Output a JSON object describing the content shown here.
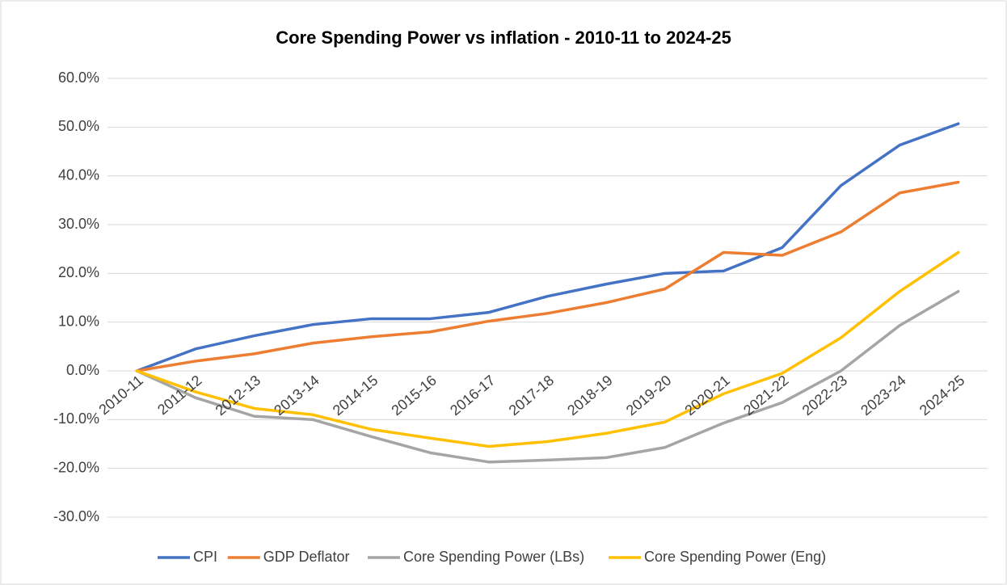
{
  "chart_data": {
    "type": "line",
    "title": "Core Spending Power vs inflation - 2010-11 to 2024-25",
    "categories": [
      "2010-11",
      "2011-12",
      "2012-13",
      "2013-14",
      "2014-15",
      "2015-16",
      "2016-17",
      "2017-18",
      "2018-19",
      "2019-20",
      "2020-21",
      "2021-22",
      "2022-23",
      "2023-24",
      "2024-25"
    ],
    "series": [
      {
        "name": "CPI",
        "color": "#4472c4",
        "values": [
          0,
          4.5,
          7.2,
          9.5,
          10.7,
          10.7,
          12,
          15.3,
          17.8,
          20,
          20.5,
          25.3,
          38,
          46.3,
          50.7
        ]
      },
      {
        "name": "GDP Deflator",
        "color": "#ed7d31",
        "values": [
          0,
          2,
          3.5,
          5.7,
          7,
          8,
          10.2,
          11.8,
          14,
          16.8,
          24.3,
          23.7,
          28.5,
          36.5,
          38.7
        ]
      },
      {
        "name": "Core Spending Power (LBs)",
        "color": "#a5a5a5",
        "values": [
          0,
          -5.5,
          -9.3,
          -10,
          -13.5,
          -16.8,
          -18.7,
          -18.3,
          -17.8,
          -15.7,
          -10.7,
          -6.5,
          0,
          9.3,
          16.3
        ]
      },
      {
        "name": "Core Spending Power (Eng)",
        "color": "#ffc000",
        "values": [
          0,
          -4.3,
          -7.7,
          -9,
          -12,
          -13.8,
          -15.5,
          -14.5,
          -12.8,
          -10.5,
          -4.7,
          -0.5,
          6.8,
          16.3,
          24.3
        ]
      }
    ],
    "ylim": [
      -30,
      60
    ],
    "yticks": [
      {
        "value": -30,
        "label": "-30.0%"
      },
      {
        "value": -20,
        "label": "-20.0%"
      },
      {
        "value": -10,
        "label": "-10.0%"
      },
      {
        "value": 0,
        "label": "0.0%"
      },
      {
        "value": 10,
        "label": "10.0%"
      },
      {
        "value": 20,
        "label": "20.0%"
      },
      {
        "value": 30,
        "label": "30.0%"
      },
      {
        "value": 40,
        "label": "40.0%"
      },
      {
        "value": 50,
        "label": "50.0%"
      },
      {
        "value": 60,
        "label": "60.0%"
      }
    ],
    "grid": true,
    "legend": "bottom"
  }
}
